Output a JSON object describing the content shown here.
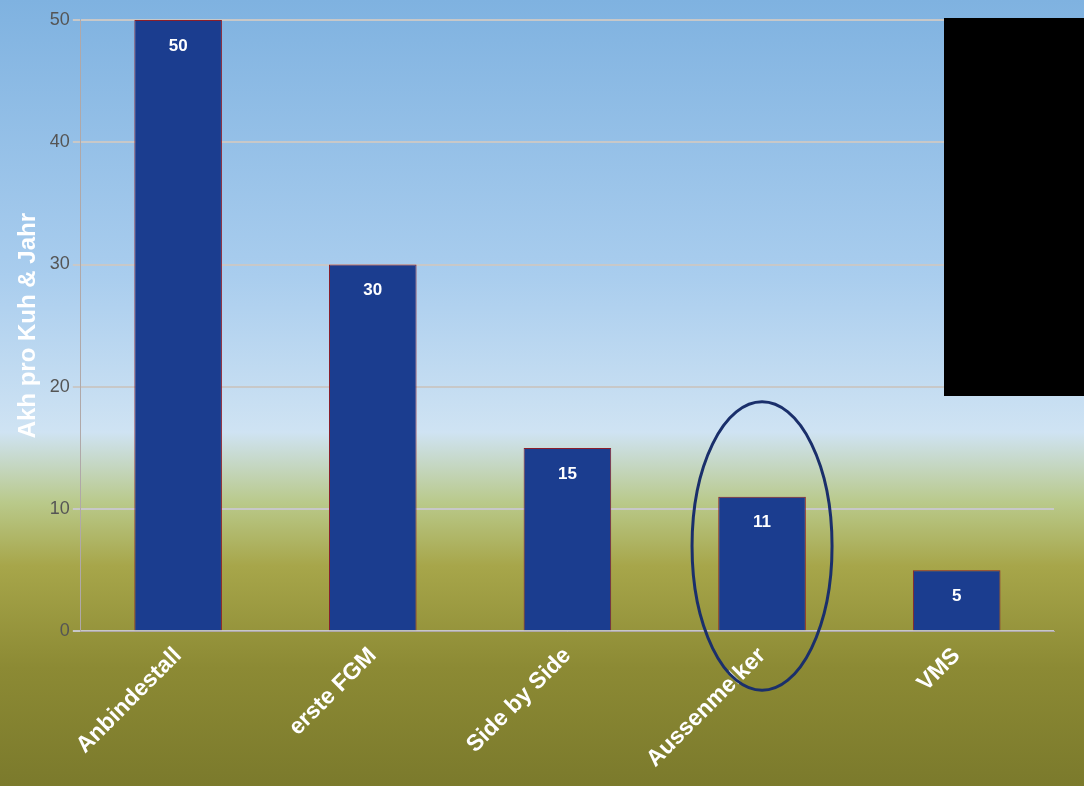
{
  "chart_data": {
    "type": "bar",
    "y_label": "Akh pro Kuh & Jahr",
    "categories": [
      "Anbindestall",
      "erste FGM",
      "Side by Side",
      "Aussenmelker",
      "VMS"
    ],
    "values": [
      50,
      30,
      15,
      11,
      5
    ],
    "color": "#1b3d8f",
    "ylim": [
      0,
      50
    ],
    "yticks": [
      0,
      10,
      20,
      30,
      40,
      50
    ],
    "grid": true,
    "data_labels": true
  }
}
